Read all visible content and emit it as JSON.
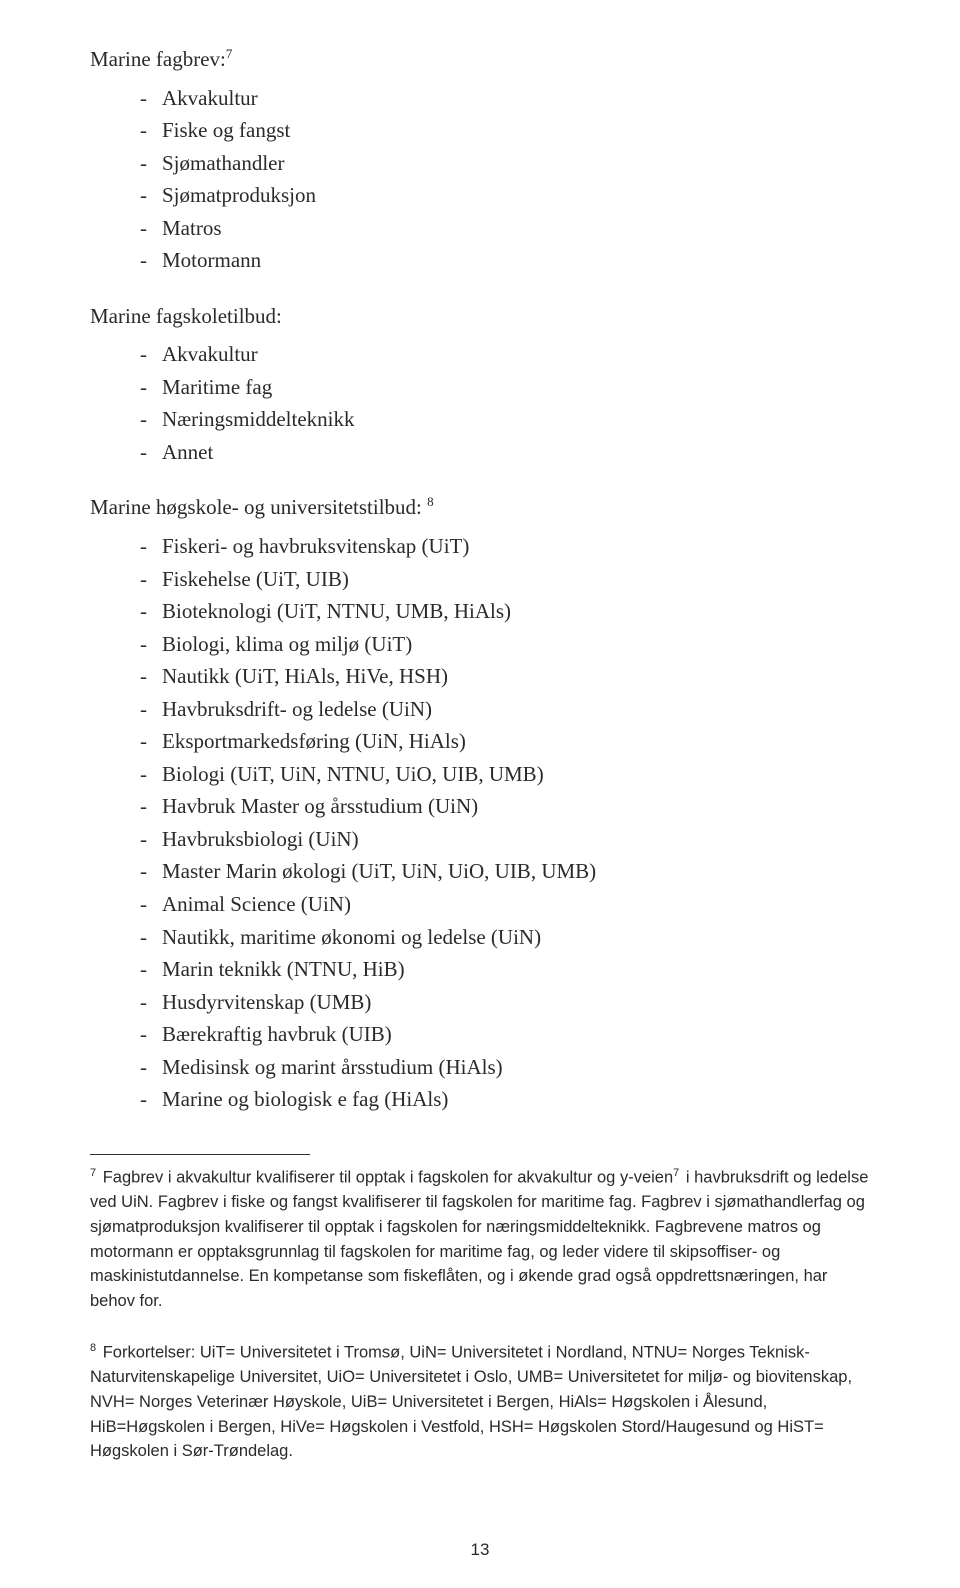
{
  "section1": {
    "heading": "Marine fagbrev:",
    "heading_sup": "7",
    "items": [
      "Akvakultur",
      "Fiske og fangst",
      "Sjømathandler",
      "Sjømatproduksjon",
      "Matros",
      "Motormann"
    ]
  },
  "section2": {
    "heading": "Marine fagskoletilbud:",
    "items": [
      "Akvakultur",
      "Maritime fag",
      "Næringsmiddelteknikk",
      "Annet"
    ]
  },
  "section3": {
    "heading": "Marine høgskole- og universitetstilbud: ",
    "heading_sup": "8",
    "items": [
      "Fiskeri- og havbruksvitenskap (UiT)",
      "Fiskehelse (UiT, UIB)",
      "Bioteknologi (UiT, NTNU, UMB, HiAls)",
      "Biologi, klima og miljø (UiT)",
      "Nautikk (UiT, HiAls, HiVe, HSH)",
      "Havbruksdrift- og ledelse (UiN)",
      "Eksportmarkedsføring (UiN, HiAls)",
      "Biologi (UiT, UiN, NTNU, UiO, UIB, UMB)",
      "Havbruk Master og årsstudium (UiN)",
      "Havbruksbiologi (UiN)",
      "Master Marin økologi (UiT, UiN, UiO, UIB, UMB)",
      "Animal Science (UiN)",
      "Nautikk, maritime økonomi og ledelse (UiN)",
      "Marin teknikk (NTNU, HiB)",
      "Husdyrvitenskap (UMB)",
      "Bærekraftig havbruk (UIB)",
      "Medisinsk og marint årsstudium (HiAls)",
      "Marine og biologisk e fag (HiAls)"
    ]
  },
  "footnote7": {
    "num": "7",
    "text_a": " Fagbrev i akvakultur kvalifiserer til opptak i fagskolen for akvakultur og y-veien",
    "sup_inline": "7",
    "text_b": " i havbruksdrift og ledelse ved UiN. Fagbrev i fiske og fangst kvalifiserer til fagskolen for maritime fag. Fagbrev i sjømathandlerfag og sjømatproduksjon kvalifiserer til opptak i fagskolen for næringsmiddelteknikk. Fagbrevene matros og motormann er opptaksgrunnlag til fagskolen for maritime fag, og leder videre til skipsoffiser- og maskinistutdannelse. En kompetanse som fiskeflåten, og i økende grad også oppdrettsnæringen, har behov for."
  },
  "footnote8": {
    "num": "8",
    "text": " Forkortelser: UiT= Universitetet i Tromsø, UiN= Universitetet i Nordland, NTNU= Norges Teknisk-Naturvitenskapelige Universitet, UiO= Universitetet i Oslo, UMB= Universitetet for miljø- og biovitenskap, NVH= Norges Veterinær Høyskole, UiB= Universitetet i Bergen, HiAls= Høgskolen i Ålesund, HiB=Høgskolen i Bergen, HiVe= Høgskolen i Vestfold, HSH= Høgskolen Stord/Haugesund og HiST= Høgskolen i Sør-Trøndelag."
  },
  "page_number": "13"
}
